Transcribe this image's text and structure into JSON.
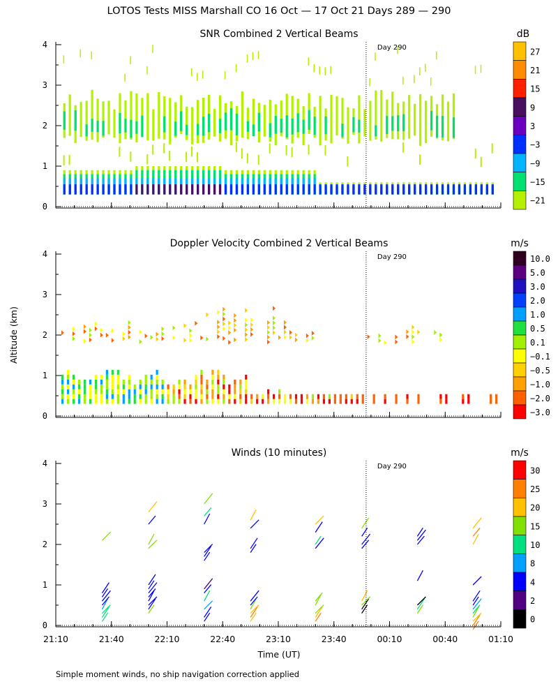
{
  "title": "LOTOS Tests MISS Marshall CO  16 Oct — 17 Oct 21 Days 289 — 290",
  "footer": "Simple moment winds, no ship navigation correction applied",
  "colors": {
    "background": "#ffffff",
    "axis": "#000000",
    "day_line": "#000000"
  },
  "chart_data": [
    {
      "type": "heatmap",
      "title": "SNR Combined 2 Vertical Beams",
      "xlabel": "",
      "ylabel": "",
      "x_ticks": [
        "21:10",
        "21:40",
        "22:10",
        "22:40",
        "23:10",
        "23:40",
        "00:10",
        "00:40",
        "01:10"
      ],
      "xlim": [
        "21:10",
        "01:10"
      ],
      "y_ticks": [
        0,
        1,
        2,
        3,
        4
      ],
      "ylim": [
        0,
        4
      ],
      "day_marker": {
        "label": "Day 290",
        "time": "00:00"
      },
      "colorbar": {
        "unit": "dB",
        "labels": [
          "27",
          "21",
          "15",
          "9",
          "3",
          "−3",
          "−9",
          "−15",
          "−21"
        ],
        "colors": [
          "#ffc000",
          "#ff8c00",
          "#ff2000",
          "#4a1060",
          "#6a00c0",
          "#0030ff",
          "#00b4ff",
          "#00e070",
          "#b4f000"
        ]
      },
      "layers": [
        {
          "name": "low_band",
          "alt_range": [
            0.3,
            0.9
          ],
          "level": "−9 to 9"
        },
        {
          "name": "upper_band",
          "alt_range": [
            1.5,
            2.8
          ],
          "level": "−21 to −9"
        }
      ]
    },
    {
      "type": "heatmap",
      "title": "Doppler Velocity Combined 2 Vertical Beams",
      "xlabel": "",
      "ylabel": "Altitude (km)",
      "x_ticks": [
        "21:10",
        "21:40",
        "22:10",
        "22:40",
        "23:10",
        "23:40",
        "00:10",
        "00:40",
        "01:10"
      ],
      "xlim": [
        "21:10",
        "01:10"
      ],
      "y_ticks": [
        0,
        1,
        2,
        3,
        4
      ],
      "ylim": [
        0,
        4
      ],
      "day_marker": {
        "label": "Day 290",
        "time": "00:00"
      },
      "colorbar": {
        "unit": "m/s",
        "labels": [
          "10.0",
          "5.0",
          "3.0",
          "2.0",
          "1.0",
          "0.5",
          "0.1",
          "−0.1",
          "−0.5",
          "−1.0",
          "−2.0",
          "−3.0"
        ],
        "colors": [
          "#300020",
          "#5a0080",
          "#2010c0",
          "#0040ff",
          "#00a0ff",
          "#20e040",
          "#a0f000",
          "#ffff00",
          "#ffd000",
          "#ffa000",
          "#ff6000",
          "#ff0000"
        ]
      },
      "layers": [
        {
          "name": "low_layer",
          "alt_range": [
            0.3,
            1.1
          ],
          "level": "−3.0 to 10.0"
        },
        {
          "name": "upper_layer",
          "alt_range": [
            1.6,
            2.7
          ],
          "level": "−1.0 to 0.1"
        }
      ]
    },
    {
      "type": "scatter",
      "title": "Winds (10 minutes)",
      "xlabel": "Time (UT)",
      "ylabel": "",
      "x_ticks": [
        "21:10",
        "21:40",
        "22:10",
        "22:40",
        "23:10",
        "23:40",
        "00:10",
        "00:40",
        "01:10"
      ],
      "xlim": [
        "21:10",
        "01:10"
      ],
      "y_ticks": [
        0,
        1,
        2,
        3,
        4
      ],
      "ylim": [
        0,
        4
      ],
      "day_marker": {
        "label": "Day 290",
        "time": "00:00"
      },
      "colorbar": {
        "unit": "m/s",
        "labels": [
          "30",
          "25",
          "20",
          "15",
          "10",
          "8",
          "4",
          "2",
          "0"
        ],
        "colors": [
          "#ff0000",
          "#ff8000",
          "#ffc000",
          "#80e000",
          "#00e080",
          "#00a0ff",
          "#0000ff",
          "#500080",
          "#000000"
        ]
      },
      "wind_profiles": [
        {
          "time": "21:35",
          "altitudes": [
            0.1,
            0.2,
            0.3,
            0.4,
            0.5,
            0.6,
            0.7,
            0.8,
            2.1
          ],
          "speeds": [
            10,
            12,
            10,
            8,
            6,
            6,
            5,
            4,
            15
          ]
        },
        {
          "time": "22:00",
          "altitudes": [
            0.3,
            0.4,
            0.5,
            0.6,
            0.7,
            0.8,
            0.9,
            1.0,
            1.9,
            2.0,
            2.5,
            2.8
          ],
          "speeds": [
            15,
            6,
            6,
            5,
            5,
            4,
            4,
            4,
            15,
            15,
            4,
            20
          ]
        },
        {
          "time": "22:30",
          "altitudes": [
            0.1,
            0.2,
            0.4,
            0.6,
            0.8,
            0.9,
            1.6,
            1.7,
            1.8,
            2.5,
            2.7,
            3.0
          ],
          "speeds": [
            4,
            6,
            8,
            10,
            4,
            2,
            4,
            4,
            4,
            4,
            10,
            15
          ]
        },
        {
          "time": "22:55",
          "altitudes": [
            0.1,
            0.2,
            0.3,
            0.4,
            0.5,
            0.6,
            1.8,
            1.9,
            2.4,
            2.6
          ],
          "speeds": [
            20,
            25,
            20,
            15,
            6,
            4,
            4,
            4,
            4,
            20
          ]
        },
        {
          "time": "23:30",
          "altitudes": [
            0.1,
            0.2,
            0.3,
            0.5,
            0.6,
            1.9,
            2.0,
            2.3,
            2.5
          ],
          "speeds": [
            25,
            20,
            15,
            15,
            15,
            4,
            10,
            4,
            20
          ]
        },
        {
          "time": "23:55",
          "altitudes": [
            0.3,
            0.4,
            0.5,
            0.6,
            1.9,
            2.0,
            2.2,
            2.4
          ],
          "speeds": [
            1,
            1,
            15,
            20,
            4,
            4,
            4,
            15
          ]
        },
        {
          "time": "00:25",
          "altitudes": [
            0.3,
            0.4,
            0.5,
            1.1,
            2.0,
            2.1,
            2.2
          ],
          "speeds": [
            15,
            10,
            0,
            4,
            4,
            4,
            4
          ]
        },
        {
          "time": "00:55",
          "altitudes": [
            -0.1,
            0.0,
            0.1,
            0.2,
            0.3,
            0.4,
            0.5,
            0.6,
            1.0,
            2.0,
            2.2,
            2.4
          ],
          "speeds": [
            25,
            25,
            20,
            15,
            10,
            8,
            4,
            4,
            4,
            20,
            25,
            20
          ]
        }
      ]
    }
  ]
}
